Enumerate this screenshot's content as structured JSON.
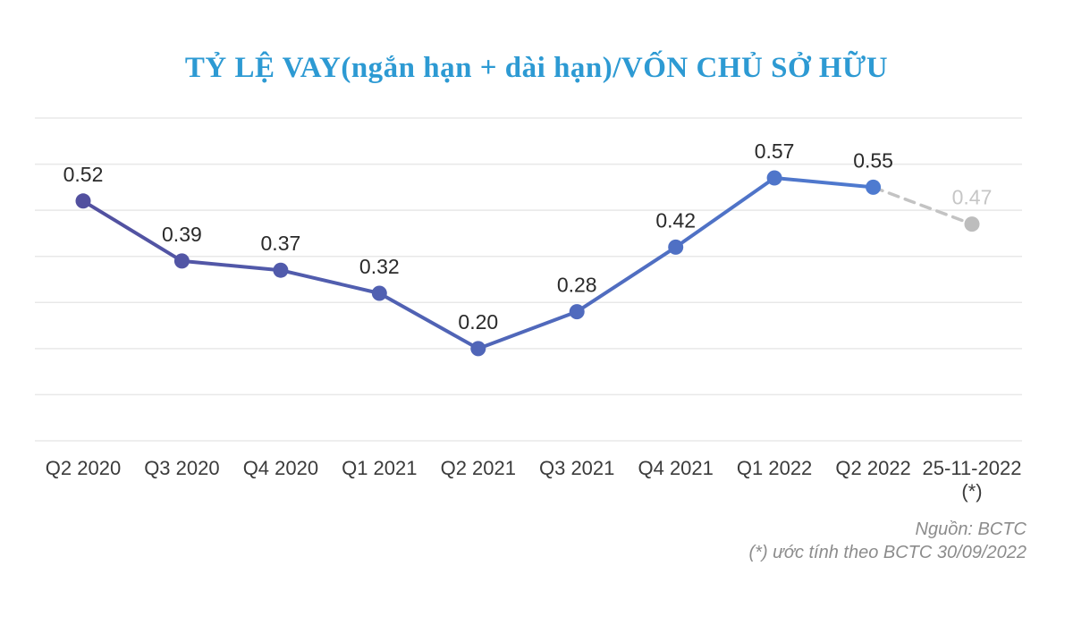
{
  "title": "TỶ LỆ VAY(ngắn hạn + dài hạn)/VỐN CHỦ SỞ HỮU",
  "footer": {
    "source": "Nguồn: BCTC",
    "note": "(*) ước tính theo BCTC 30/09/2022"
  },
  "chart_data": {
    "type": "line",
    "title": "TỶ LỆ VAY(ngắn hạn + dài hạn)/VỐN CHỦ SỞ HỮU",
    "categories": [
      "Q2 2020",
      "Q3 2020",
      "Q4 2020",
      "Q1 2021",
      "Q2 2021",
      "Q3 2021",
      "Q4 2021",
      "Q1 2022",
      "Q2 2022",
      "25-11-2022"
    ],
    "category_sublabels": [
      "",
      "",
      "",
      "",
      "",
      "",
      "",
      "",
      "",
      "(*)"
    ],
    "values": [
      0.52,
      0.39,
      0.37,
      0.32,
      0.2,
      0.28,
      0.42,
      0.57,
      0.55,
      0.47
    ],
    "value_labels": [
      "0.52",
      "0.39",
      "0.37",
      "0.32",
      "0.20",
      "0.28",
      "0.42",
      "0.57",
      "0.55",
      "0.47"
    ],
    "estimate_index": 9,
    "xlabel": "",
    "ylabel": "",
    "ylim": [
      0,
      0.7
    ],
    "gridline_step": 0.1,
    "grid": true,
    "legend": false,
    "colors": {
      "line_gradient_start": "#52509F",
      "line_gradient_end": "#4E80D6",
      "estimate_line": "#C3C3C3",
      "estimate_dot": "#BDBDBD",
      "estimate_label": "#C6C6C6",
      "grid": "#E8E8E8",
      "value_label": "#2A2A2A",
      "axis_label": "#3B3B3B",
      "title": "#2D9AD3",
      "footer": "#8C8C8C"
    }
  }
}
